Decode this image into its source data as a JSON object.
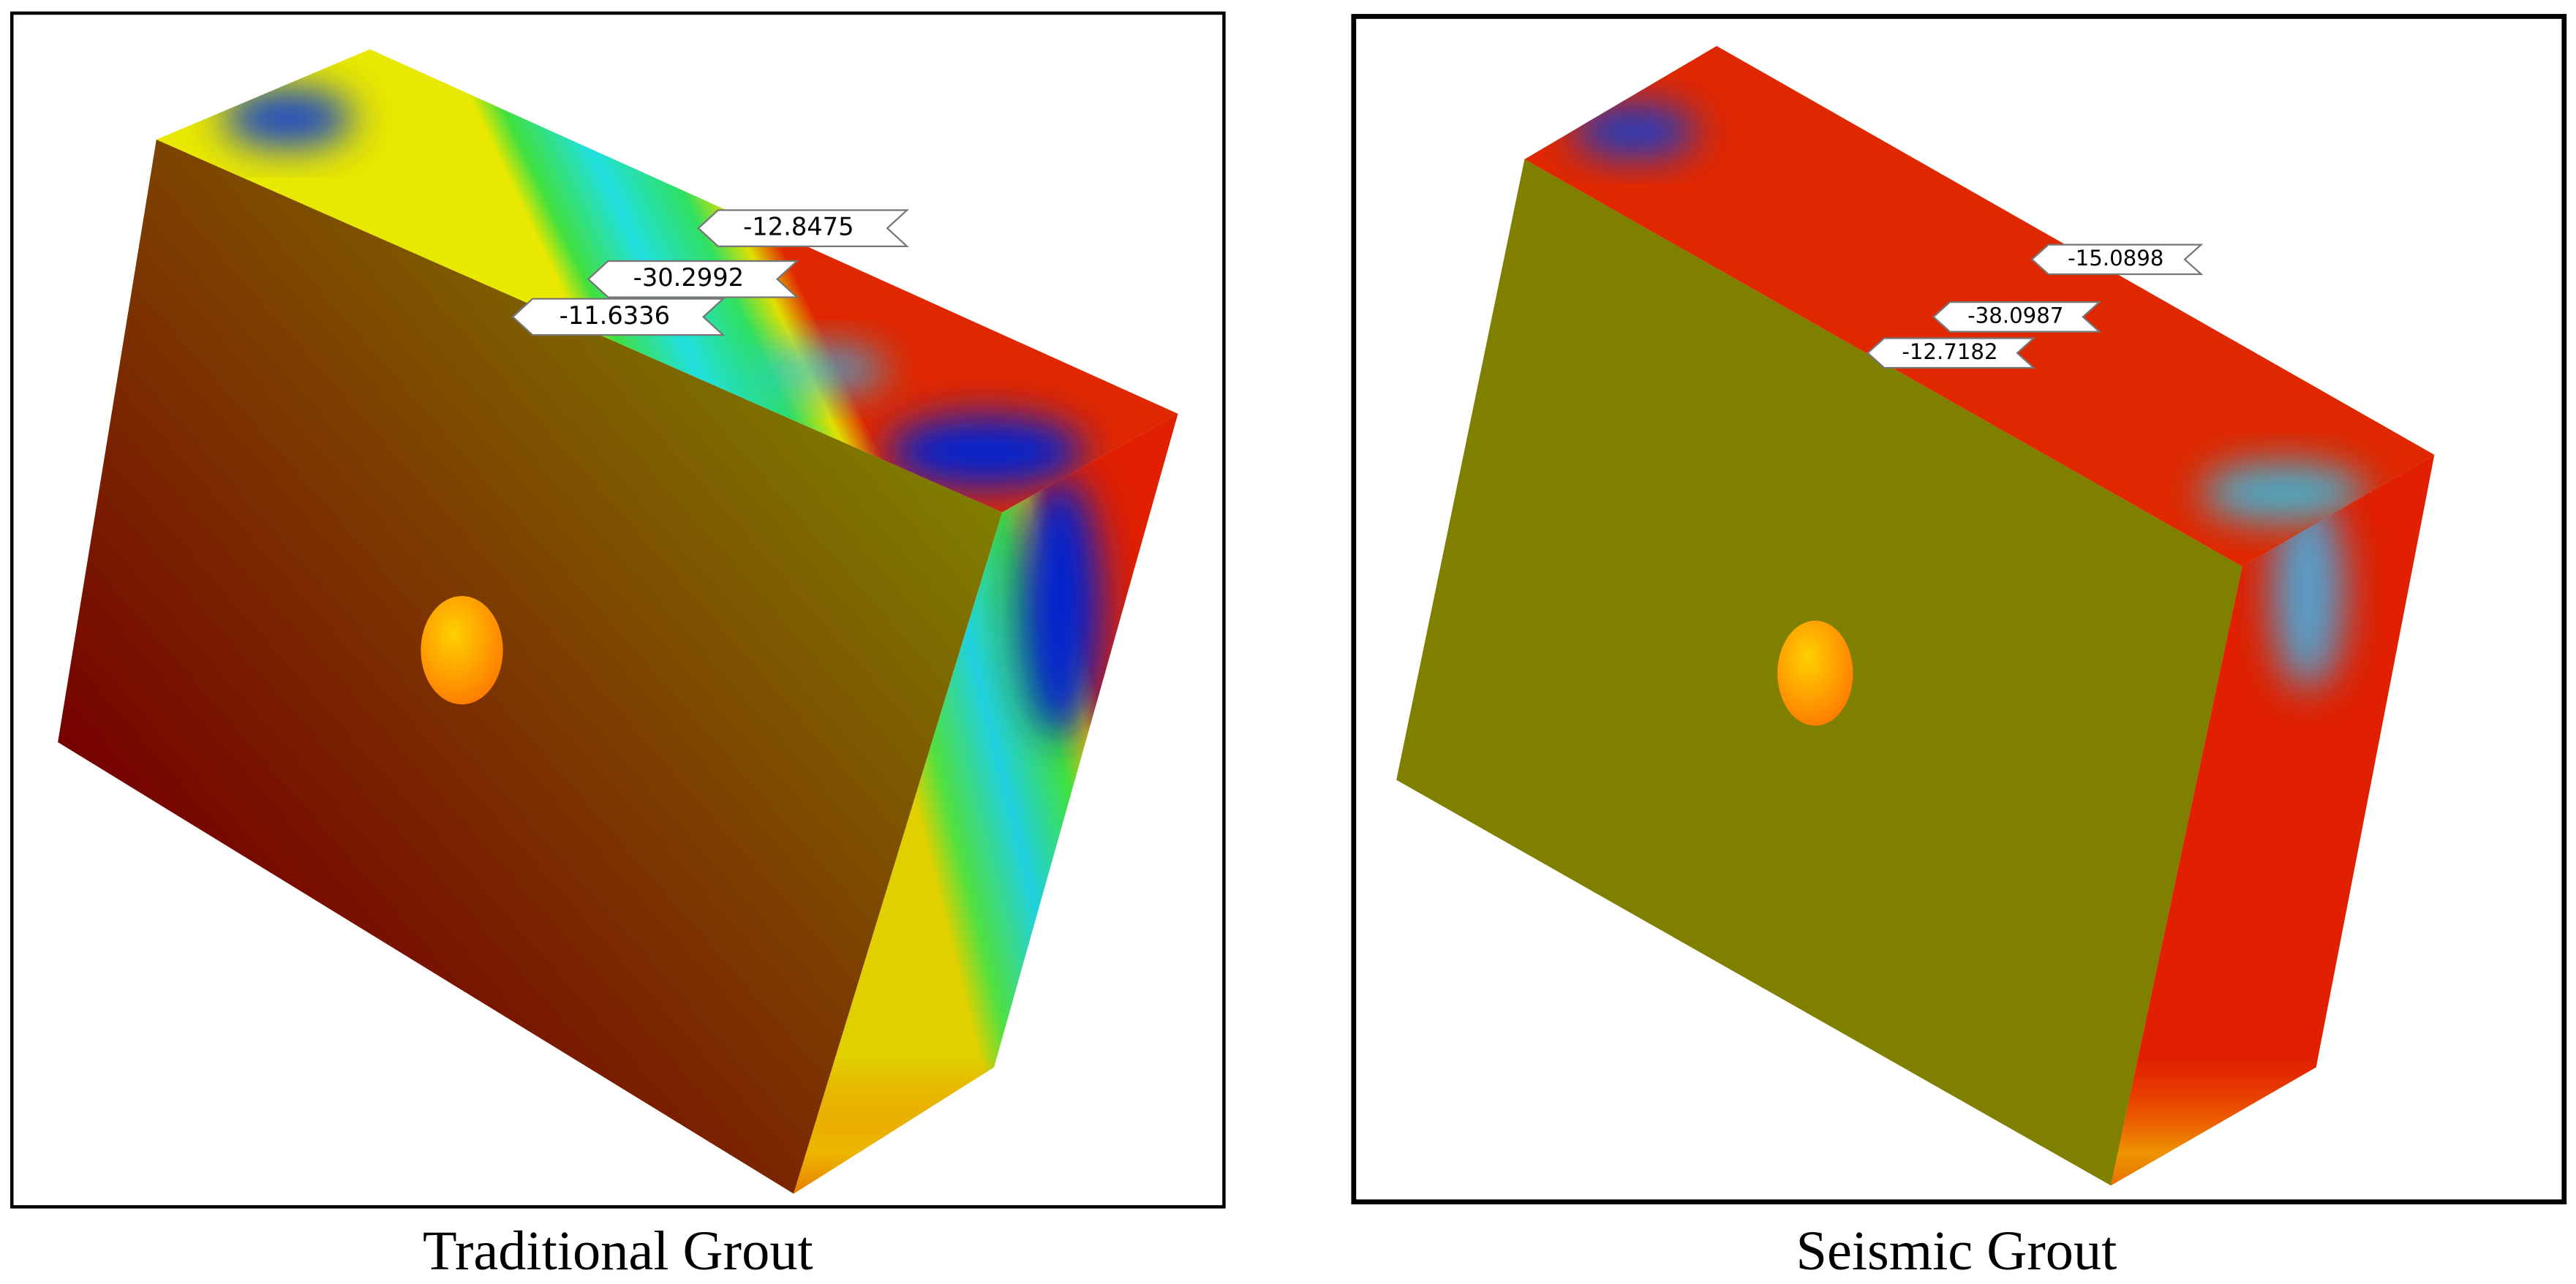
{
  "panels": [
    {
      "caption": "Traditional Grout",
      "labels": [
        "-12.8475",
        "-30.2992",
        "-11.6336"
      ]
    },
    {
      "caption": "Seismic Grout",
      "labels": [
        "-15.0898",
        "-38.0987",
        "-12.7182"
      ]
    }
  ]
}
